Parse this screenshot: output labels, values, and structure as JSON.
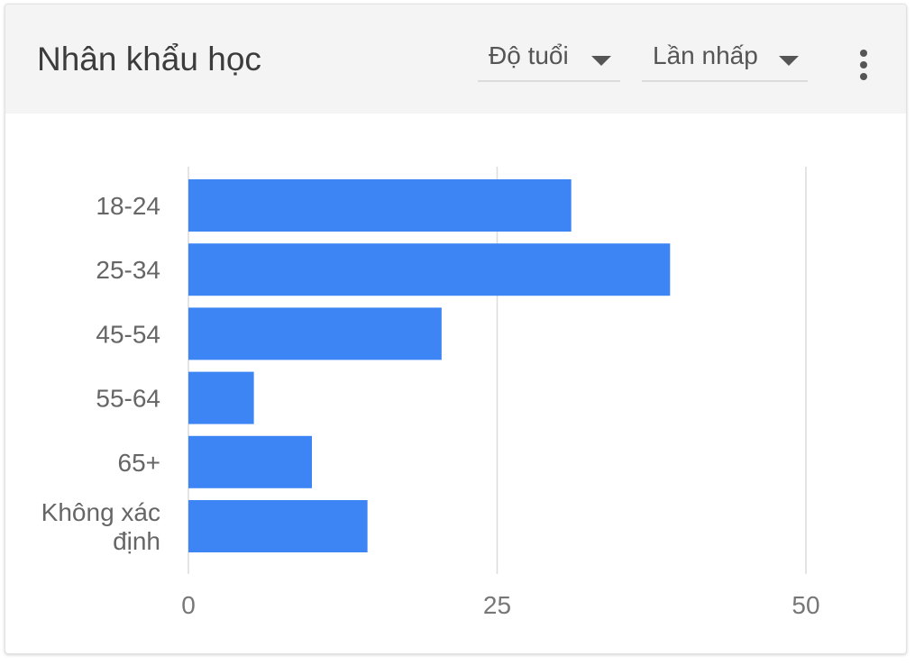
{
  "header": {
    "title": "Nhân khẩu học",
    "dimension_dropdown": "Độ tuổi",
    "metric_dropdown": "Lần nhấp",
    "more_icon": "more-vert-icon"
  },
  "colors": {
    "bar": "#3d85f4",
    "grid": "#dcdcdc",
    "header_bg": "#f4f4f4"
  },
  "chart_data": {
    "type": "bar",
    "orientation": "horizontal",
    "categories": [
      "18-24",
      "25-34",
      "45-54",
      "55-64",
      "65+",
      "Không xác định"
    ],
    "values": [
      31,
      39,
      20.5,
      5.3,
      10,
      14.5
    ],
    "xlim": [
      0,
      50
    ],
    "xticks": [
      "0",
      "25",
      "50"
    ],
    "grid": true,
    "title": "",
    "xlabel": "",
    "ylabel": ""
  }
}
